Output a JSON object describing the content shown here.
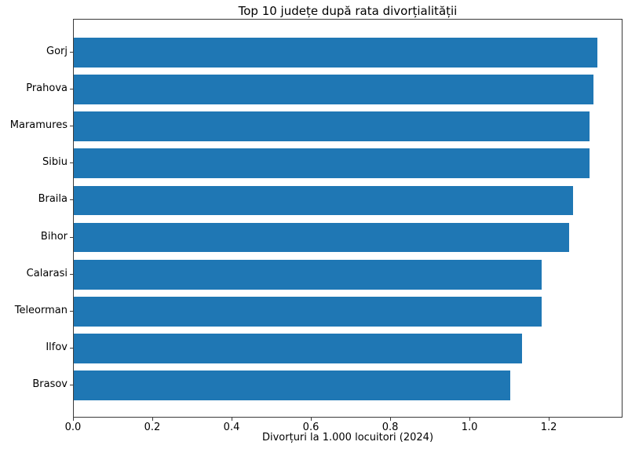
{
  "title": "Top 10 județe după rata divorțialității",
  "chart_data": {
    "type": "bar",
    "orientation": "horizontal",
    "title": "Top 10 județe după rata divorțialității",
    "xlabel": "Divorțuri la 1.000 locuitori (2024)",
    "ylabel": "",
    "categories": [
      "Gorj",
      "Prahova",
      "Maramures",
      "Sibiu",
      "Braila",
      "Bihor",
      "Calarasi",
      "Teleorman",
      "Ilfov",
      "Brasov"
    ],
    "values": [
      1.32,
      1.31,
      1.3,
      1.3,
      1.26,
      1.25,
      1.18,
      1.18,
      1.13,
      1.1
    ],
    "xlim": [
      0,
      1.386
    ],
    "xticks": [
      "0.0",
      "0.2",
      "0.4",
      "0.6",
      "0.8",
      "1.0",
      "1.2"
    ],
    "bar_color": "#1f77b4",
    "spine_color": "#3a3a3a",
    "background_color": "#ffffff",
    "grid": false,
    "legend": null
  }
}
